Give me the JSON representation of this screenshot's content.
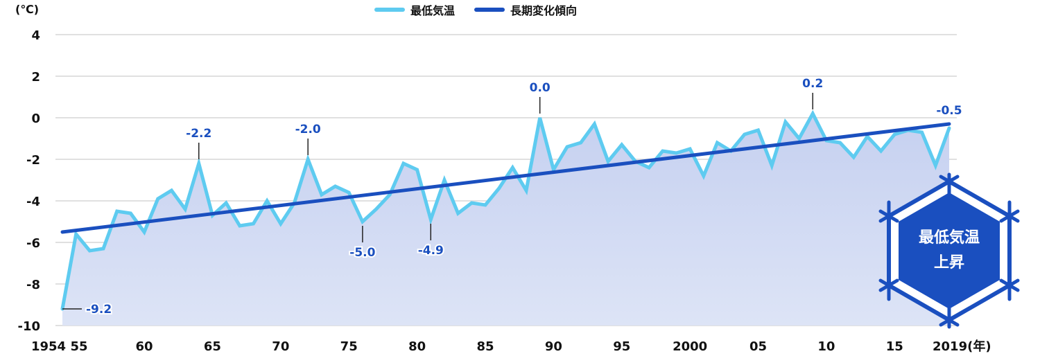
{
  "legend": {
    "items": [
      {
        "label": "最低気温",
        "color": "#5ecbf0"
      },
      {
        "label": "長期変化傾向",
        "color": "#1a4fbf"
      }
    ]
  },
  "y_axis": {
    "unit_label": "(℃)",
    "ticks": [
      "4",
      "2",
      "0",
      "-2",
      "-4",
      "-6",
      "-8",
      "-10"
    ]
  },
  "x_axis": {
    "ticks": [
      {
        "year": 1954,
        "label": "1954"
      },
      {
        "year": 1955,
        "label": "55"
      },
      {
        "year": 1960,
        "label": "60"
      },
      {
        "year": 1965,
        "label": "65"
      },
      {
        "year": 1970,
        "label": "70"
      },
      {
        "year": 1975,
        "label": "75"
      },
      {
        "year": 1980,
        "label": "80"
      },
      {
        "year": 1985,
        "label": "85"
      },
      {
        "year": 1990,
        "label": "90"
      },
      {
        "year": 1995,
        "label": "95"
      },
      {
        "year": 2000,
        "label": "2000"
      },
      {
        "year": 2005,
        "label": "05"
      },
      {
        "year": 2010,
        "label": "10"
      },
      {
        "year": 2015,
        "label": "15"
      },
      {
        "year": 2019,
        "label": "2019(年)"
      }
    ]
  },
  "badge": {
    "line1": "最低気温",
    "line2": "上昇",
    "color": "#1a4fbf"
  },
  "colors": {
    "series_line": "#5ecbf0",
    "trend_line": "#1a4fbf",
    "area_fill_top": "#c5d0f0",
    "area_fill_bottom": "#dde4f6",
    "grid": "#e0e0e0",
    "annotation_text": "#1a4fbf",
    "axis_text": "#111111"
  },
  "chart_data": {
    "type": "line",
    "title": "",
    "xlabel": "(年)",
    "ylabel": "(℃)",
    "ylim": [
      -10,
      4
    ],
    "xlim": [
      1954,
      2019
    ],
    "grid": true,
    "legend_position": "top-center",
    "x": [
      1954,
      1955,
      1956,
      1957,
      1958,
      1959,
      1960,
      1961,
      1962,
      1963,
      1964,
      1965,
      1966,
      1967,
      1968,
      1969,
      1970,
      1971,
      1972,
      1973,
      1974,
      1975,
      1976,
      1977,
      1978,
      1979,
      1980,
      1981,
      1982,
      1983,
      1984,
      1985,
      1986,
      1987,
      1988,
      1989,
      1990,
      1991,
      1992,
      1993,
      1994,
      1995,
      1996,
      1997,
      1998,
      1999,
      2000,
      2001,
      2002,
      2003,
      2004,
      2005,
      2006,
      2007,
      2008,
      2009,
      2010,
      2011,
      2012,
      2013,
      2014,
      2015,
      2016,
      2017,
      2018,
      2019
    ],
    "series": [
      {
        "name": "最低気温",
        "type": "area-line",
        "values": [
          -9.2,
          -5.6,
          -6.4,
          -6.3,
          -4.5,
          -4.6,
          -5.5,
          -3.9,
          -3.5,
          -4.4,
          -2.2,
          -4.7,
          -4.1,
          -5.2,
          -5.1,
          -4.0,
          -5.1,
          -4.1,
          -2.0,
          -3.7,
          -3.3,
          -3.6,
          -5.0,
          -4.4,
          -3.7,
          -2.2,
          -2.5,
          -4.9,
          -3.0,
          -4.6,
          -4.1,
          -4.2,
          -3.4,
          -2.4,
          -3.5,
          0.0,
          -2.5,
          -1.4,
          -1.2,
          -0.3,
          -2.1,
          -1.3,
          -2.1,
          -2.4,
          -1.6,
          -1.7,
          -1.5,
          -2.8,
          -1.2,
          -1.6,
          -0.8,
          -0.6,
          -2.3,
          -0.2,
          -1.0,
          0.2,
          -1.1,
          -1.2,
          -1.9,
          -0.9,
          -1.6,
          -0.8,
          -0.6,
          -0.7,
          -2.3,
          -0.5
        ]
      },
      {
        "name": "長期変化傾向",
        "type": "trend",
        "start": {
          "x": 1954,
          "y": -5.5
        },
        "end": {
          "x": 2019,
          "y": -0.3
        }
      }
    ],
    "annotations": [
      {
        "x": 1954,
        "y": -9.2,
        "label": "-9.2",
        "position": "right"
      },
      {
        "x": 1964,
        "y": -2.2,
        "label": "-2.2",
        "position": "above"
      },
      {
        "x": 1972,
        "y": -2.0,
        "label": "-2.0",
        "position": "above"
      },
      {
        "x": 1976,
        "y": -5.0,
        "label": "-5.0",
        "position": "below"
      },
      {
        "x": 1981,
        "y": -4.9,
        "label": "-4.9",
        "position": "below"
      },
      {
        "x": 1989,
        "y": 0.0,
        "label": "0.0",
        "position": "above"
      },
      {
        "x": 2009,
        "y": 0.2,
        "label": "0.2",
        "position": "above"
      },
      {
        "x": 2019,
        "y": -0.5,
        "label": "-0.5",
        "position": "above"
      }
    ]
  }
}
